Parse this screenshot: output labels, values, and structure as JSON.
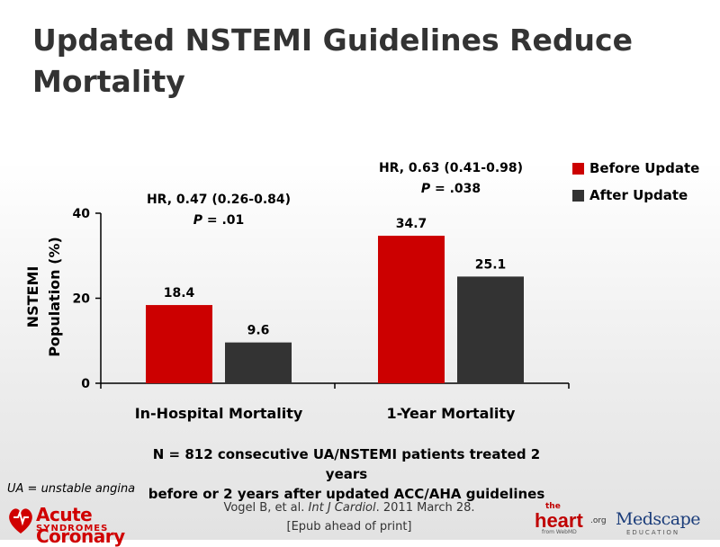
{
  "title": "Updated NSTEMI Guidelines Reduce Mortality",
  "chart_data": {
    "type": "bar",
    "categories": [
      "In-Hospital Mortality",
      "1-Year Mortality"
    ],
    "series": [
      {
        "name": "Before Update",
        "values": [
          18.4,
          34.7
        ],
        "labels": [
          "18.4",
          "34.7"
        ],
        "color": "#cc0000"
      },
      {
        "name": "After Update",
        "values": [
          9.6,
          25.1
        ],
        "labels": [
          "9.6",
          "25.1"
        ],
        "color": "#333333"
      }
    ],
    "ylabel_line1": "NSTEMI",
    "ylabel_line2": "Population (%)",
    "ylim": [
      0,
      40
    ],
    "yticks": [
      0,
      20,
      40
    ],
    "ytick_labels": [
      "0",
      "20",
      "40"
    ],
    "grid": false,
    "legend_position": "top-right",
    "annotations": [
      {
        "hr": "HR, 0.47 (0.26-0.84)",
        "p_prefix": "P",
        "p_value": " = .01"
      },
      {
        "hr": "HR, 0.63 (0.41-0.98)",
        "p_prefix": "P",
        "p_value": " = .038"
      }
    ]
  },
  "note_line1": "N = 812 consecutive UA/NSTEMI patients treated 2 years",
  "note_line2": "before or 2 years after updated ACC/AHA guidelines",
  "footnote": "UA = unstable angina",
  "citation": {
    "authors": "Vogel B, et al. ",
    "journal": "Int J Cardiol",
    "date": ". 2011 March 28.",
    "line2": "[Epub ahead of print]"
  },
  "logos": {
    "acs_line1": "Acute Coronary",
    "acs_line2": "SYNDROMES",
    "heart_the": "the",
    "heart_main": "heart",
    "heart_org": ".org",
    "heart_from": "from WebMD",
    "medscape_name": "Medscape",
    "medscape_edu": "EDUCATION"
  }
}
